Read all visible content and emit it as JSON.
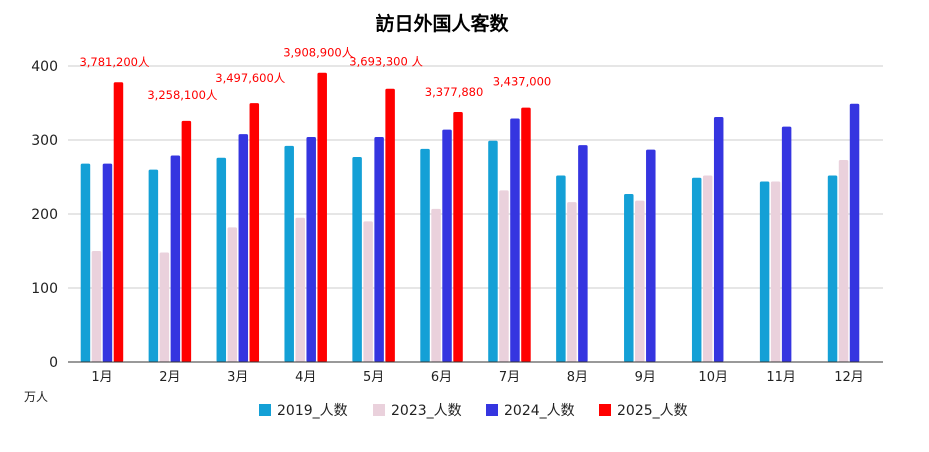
{
  "chart_data": {
    "type": "bar",
    "title": "訪日外国人客数",
    "ylabel": "",
    "unit_label": "万人",
    "xlabel": "",
    "ylim": [
      0,
      400
    ],
    "yticks": [
      0,
      100,
      200,
      300,
      400
    ],
    "grid": true,
    "legend_position": "bottom",
    "categories": [
      "1月",
      "2月",
      "3月",
      "4月",
      "5月",
      "6月",
      "7月",
      "8月",
      "9月",
      "10月",
      "11月",
      "12月"
    ],
    "series": [
      {
        "name": "2019_人数",
        "color": "#14a0d6",
        "values": [
          268,
          260,
          276,
          292,
          277,
          288,
          299,
          252,
          227,
          249,
          244,
          252
        ]
      },
      {
        "name": "2023_人数",
        "color": "#ead1dc",
        "values": [
          150,
          148,
          182,
          195,
          190,
          207,
          232,
          216,
          218,
          252,
          244,
          273
        ]
      },
      {
        "name": "2024_人数",
        "color": "#3535e0",
        "values": [
          268,
          279,
          308,
          304,
          304,
          314,
          329,
          293,
          287,
          331,
          318,
          349
        ]
      },
      {
        "name": "2025_人数",
        "color": "#ff0000",
        "values": [
          378.1,
          325.8,
          349.8,
          390.9,
          369.3,
          337.8,
          343.7,
          null,
          null,
          null,
          null,
          null
        ],
        "data_labels": [
          "3,781,200人",
          "3,258,100人",
          "3,497,600人",
          "3,908,900人",
          "3,693,300 人",
          "3,377,880",
          "3,437,000",
          "",
          "",
          "",
          "",
          ""
        ]
      }
    ]
  }
}
